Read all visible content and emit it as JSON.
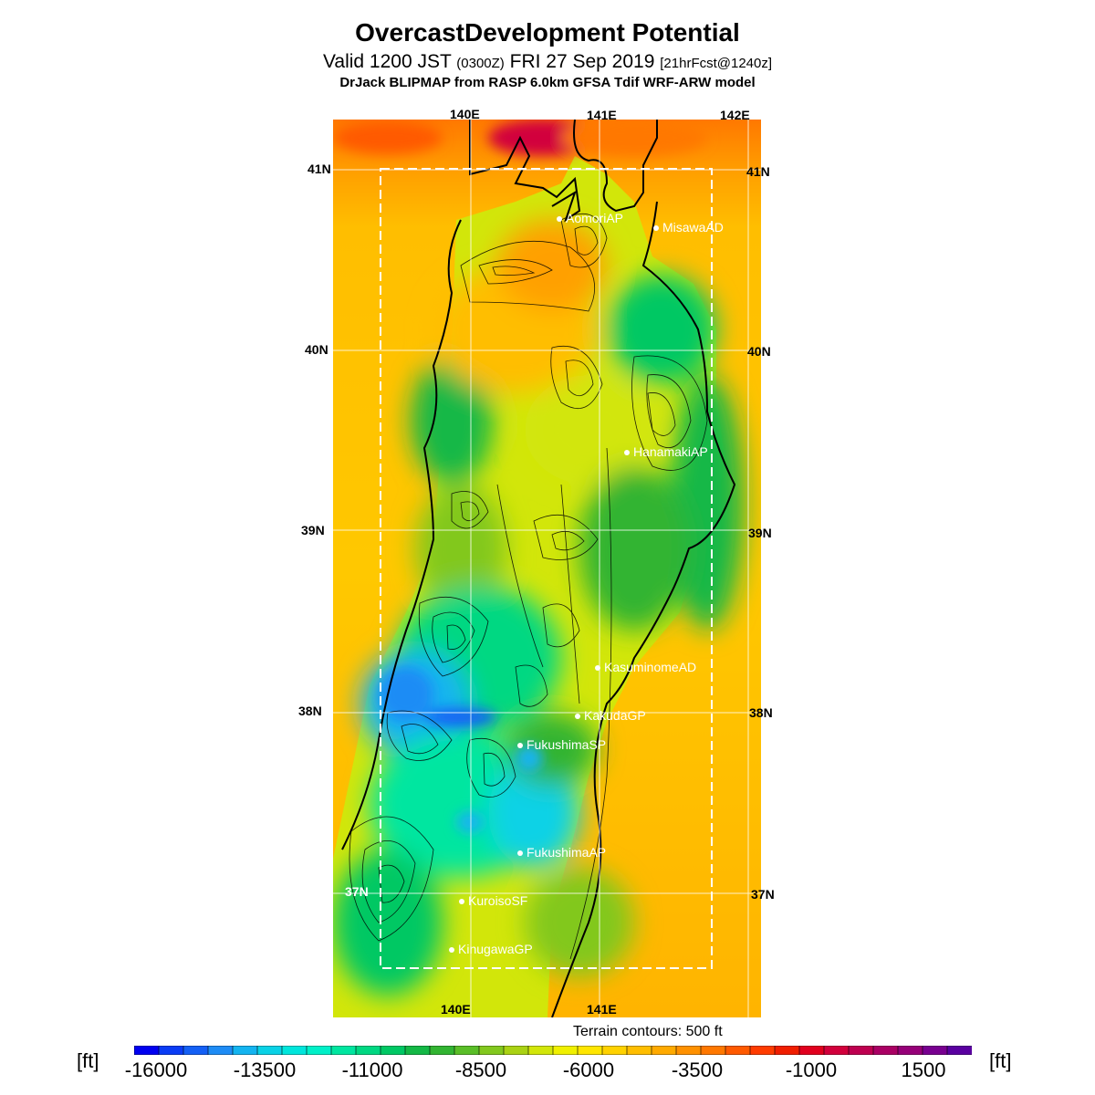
{
  "title": "OvercastDevelopment Potential",
  "subtitle": {
    "pre": "Valid 1200 JST ",
    "utc": "(0300Z)",
    "mid": " FRI 27 Sep 2019 ",
    "fcst": "[21hrFcst@1240z]"
  },
  "model_line": "DrJack BLIPMAP from RASP 6.0km GFSA Tdif WRF-ARW model",
  "lon_labels_top": [
    "140E",
    "141E",
    "142E"
  ],
  "lon_labels_bottom": [
    "140E",
    "141E"
  ],
  "lat_labels": [
    "41N",
    "40N",
    "39N",
    "38N",
    "37N"
  ],
  "stations": [
    "AomoriAP",
    "MisawaAD",
    "HanamakiAP",
    "KasuminomeAD",
    "KakudaGP",
    "FukushimaSP",
    "FukushimaAP",
    "KuroisoSF",
    "KinugawaGP"
  ],
  "contour_note": "Terrain contours: 500 ft",
  "colorbar": {
    "unit": "[ft]",
    "tick_labels": [
      "-16000",
      "-13500",
      "-11000",
      "-8500",
      "-6000",
      "-3500",
      "-1000",
      "1500"
    ],
    "colors": [
      "#0000f0",
      "#0a3cf5",
      "#1460f5",
      "#1e8cf5",
      "#14b4f0",
      "#0ad2e6",
      "#00e6dc",
      "#00f0c8",
      "#00e6a0",
      "#00d882",
      "#00c864",
      "#14b846",
      "#32b432",
      "#5abe28",
      "#82c81e",
      "#aad214",
      "#d2e60a",
      "#f0f000",
      "#ffe600",
      "#ffd200",
      "#ffbe00",
      "#ffaa00",
      "#ff9100",
      "#ff7800",
      "#ff5a00",
      "#ff3c00",
      "#f01e00",
      "#e1001e",
      "#d2003c",
      "#be0050",
      "#aa0064",
      "#960078",
      "#780090",
      "#5a00a0"
    ]
  },
  "colors": {
    "ocean_orange": "#ffb400",
    "sea_deep_orange": "#ff5000"
  }
}
